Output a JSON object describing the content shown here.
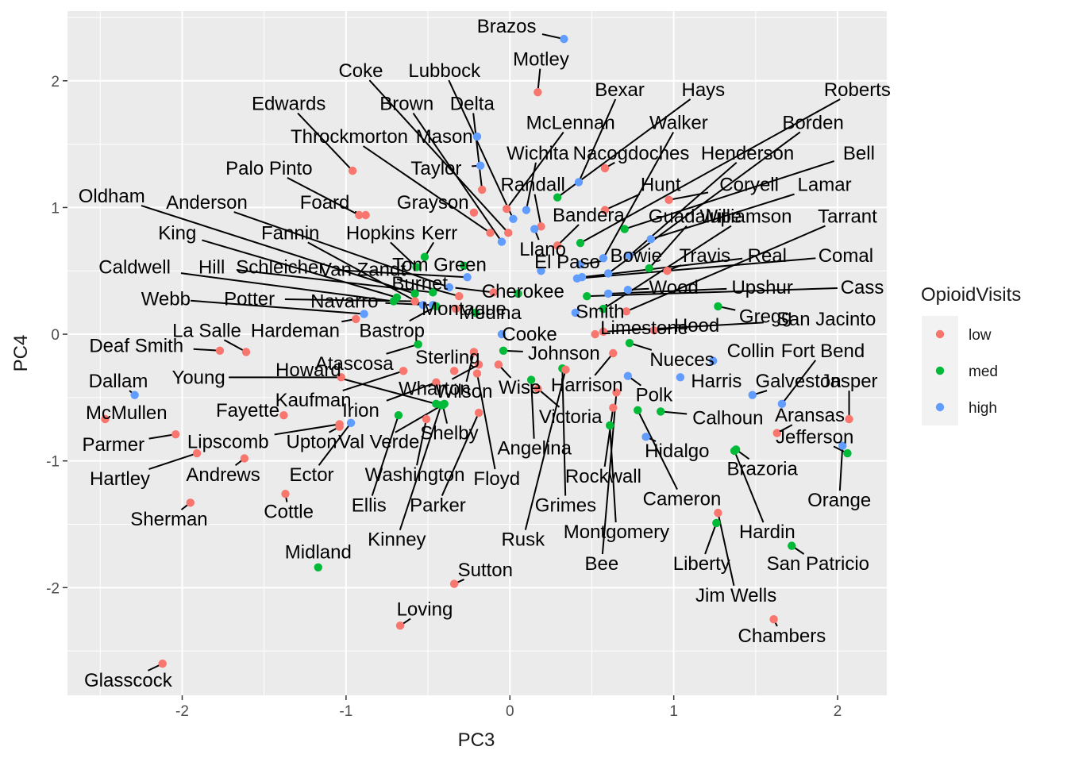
{
  "chart_data": {
    "type": "scatter",
    "title": "",
    "xlabel": "PC3",
    "ylabel": "PC4",
    "xlim": [
      -2.7,
      2.3
    ],
    "ylim": [
      -2.85,
      2.55
    ],
    "x_ticks": [
      -2,
      -1,
      0,
      1,
      2
    ],
    "y_ticks": [
      -2,
      -1,
      0,
      1,
      2
    ],
    "grid": true,
    "legend": {
      "title": "OpioidVisits",
      "position": "right",
      "entries": [
        {
          "name": "low",
          "color": "#F8766D"
        },
        {
          "name": "med",
          "color": "#00BA38"
        },
        {
          "name": "high",
          "color": "#619CFF"
        }
      ]
    },
    "points": [
      {
        "name": "Brazos",
        "x": 0.33,
        "y": 2.33,
        "group": "high",
        "lx": -0.02,
        "ly": 2.43
      },
      {
        "name": "Motley",
        "x": 0.17,
        "y": 1.91,
        "group": "low",
        "lx": 0.19,
        "ly": 2.17
      },
      {
        "name": "Bexar",
        "x": 0.42,
        "y": 1.2,
        "group": "high",
        "lx": 0.67,
        "ly": 1.93
      },
      {
        "name": "Hays",
        "x": 0.29,
        "y": 1.08,
        "group": "med",
        "lx": 1.18,
        "ly": 1.93
      },
      {
        "name": "Roberts",
        "x": 0.43,
        "y": 0.72,
        "group": "med",
        "lx": 2.12,
        "ly": 1.93
      },
      {
        "name": "Coke",
        "x": -0.01,
        "y": 0.8,
        "group": "low",
        "lx": -0.91,
        "ly": 2.08
      },
      {
        "name": "Lubbock",
        "x": 0.02,
        "y": 0.91,
        "group": "high",
        "lx": -0.4,
        "ly": 2.08
      },
      {
        "name": "Edwards",
        "x": -0.96,
        "y": 1.29,
        "group": "low",
        "lx": -1.35,
        "ly": 1.82
      },
      {
        "name": "Brown",
        "x": -0.05,
        "y": 0.73,
        "group": "high",
        "lx": -0.63,
        "ly": 1.82
      },
      {
        "name": "Delta",
        "x": -0.17,
        "y": 1.14,
        "group": "low",
        "lx": -0.23,
        "ly": 1.82
      },
      {
        "name": "McLennan",
        "x": -0.02,
        "y": 0.99,
        "group": "low",
        "lx": 0.37,
        "ly": 1.67
      },
      {
        "name": "Walker",
        "x": 0.57,
        "y": 0.6,
        "group": "high",
        "lx": 1.03,
        "ly": 1.67
      },
      {
        "name": "Borden",
        "x": 0.6,
        "y": 0.48,
        "group": "high",
        "lx": 1.85,
        "ly": 1.67
      },
      {
        "name": "Throckmorton",
        "x": -0.12,
        "y": 0.8,
        "group": "low",
        "lx": -0.98,
        "ly": 1.56
      },
      {
        "name": "Mason",
        "x": -0.2,
        "y": 1.56,
        "group": "high",
        "lx": -0.4,
        "ly": 1.56
      },
      {
        "name": "Wichita",
        "x": 0.1,
        "y": 0.98,
        "group": "high",
        "lx": 0.17,
        "ly": 1.43
      },
      {
        "name": "Nacogdoches",
        "x": 0.58,
        "y": 1.31,
        "group": "low",
        "lx": 0.74,
        "ly": 1.43
      },
      {
        "name": "Henderson",
        "x": 0.73,
        "y": 0.62,
        "group": "high",
        "lx": 1.45,
        "ly": 1.43
      },
      {
        "name": "Bell",
        "x": 0.7,
        "y": 0.83,
        "group": "med",
        "lx": 2.13,
        "ly": 1.43
      },
      {
        "name": "Palo Pinto",
        "x": -0.92,
        "y": 0.94,
        "group": "low",
        "lx": -1.47,
        "ly": 1.31
      },
      {
        "name": "Taylor",
        "x": -0.18,
        "y": 1.33,
        "group": "high",
        "lx": -0.45,
        "ly": 1.31
      },
      {
        "name": "Randall",
        "x": 0.19,
        "y": 0.85,
        "group": "low",
        "lx": 0.14,
        "ly": 1.18
      },
      {
        "name": "Hunt",
        "x": 0.58,
        "y": 0.98,
        "group": "low",
        "lx": 0.92,
        "ly": 1.18
      },
      {
        "name": "Coryell",
        "x": 0.97,
        "y": 1.06,
        "group": "low",
        "lx": 1.46,
        "ly": 1.18
      },
      {
        "name": "Lamar",
        "x": 0.86,
        "y": 0.75,
        "group": "high",
        "lx": 1.92,
        "ly": 1.18
      },
      {
        "name": "Oldham",
        "x": -0.58,
        "y": 0.32,
        "group": "med",
        "lx": -2.43,
        "ly": 1.09
      },
      {
        "name": "Anderson",
        "x": -0.37,
        "y": 0.37,
        "group": "high",
        "lx": -1.85,
        "ly": 1.04
      },
      {
        "name": "Foard",
        "x": -0.88,
        "y": 0.94,
        "group": "low",
        "lx": -1.13,
        "ly": 1.04
      },
      {
        "name": "Grayson",
        "x": -0.22,
        "y": 0.96,
        "group": "low",
        "lx": -0.47,
        "ly": 1.04
      },
      {
        "name": "Bandera",
        "x": 0.29,
        "y": 0.7,
        "group": "low",
        "lx": 0.48,
        "ly": 0.94
      },
      {
        "name": "Guadalupe",
        "x": 0.85,
        "y": 0.52,
        "group": "med",
        "lx": 1.13,
        "ly": 0.93
      },
      {
        "name": "Williamson",
        "x": 0.57,
        "y": 0.2,
        "group": "med",
        "lx": 1.44,
        "ly": 0.93
      },
      {
        "name": "Tarrant",
        "x": 0.71,
        "y": 0.18,
        "group": "low",
        "lx": 2.06,
        "ly": 0.93
      },
      {
        "name": "King",
        "x": -0.69,
        "y": 0.29,
        "group": "med",
        "lx": -2.03,
        "ly": 0.8
      },
      {
        "name": "Fannin",
        "x": -0.53,
        "y": 0.23,
        "group": "high",
        "lx": -1.34,
        "ly": 0.8
      },
      {
        "name": "Hopkins",
        "x": -0.57,
        "y": 0.53,
        "group": "med",
        "lx": -0.79,
        "ly": 0.8
      },
      {
        "name": "Kerr",
        "x": -0.52,
        "y": 0.61,
        "group": "med",
        "lx": -0.43,
        "ly": 0.8
      },
      {
        "name": "Llano",
        "x": 0.15,
        "y": 0.83,
        "group": "high",
        "lx": 0.2,
        "ly": 0.67
      },
      {
        "name": "Bowie",
        "x": 0.43,
        "y": 0.55,
        "group": "high",
        "lx": 0.77,
        "ly": 0.62
      },
      {
        "name": "Travis",
        "x": 0.96,
        "y": 0.5,
        "group": "low",
        "lx": 1.19,
        "ly": 0.62
      },
      {
        "name": "Real",
        "x": 0.44,
        "y": 0.45,
        "group": "high",
        "lx": 1.57,
        "ly": 0.62
      },
      {
        "name": "Comal",
        "x": 0.41,
        "y": 0.44,
        "group": "high",
        "lx": 2.05,
        "ly": 0.62
      },
      {
        "name": "Caldwell",
        "x": -0.71,
        "y": 0.26,
        "group": "med",
        "lx": -2.29,
        "ly": 0.53
      },
      {
        "name": "Hill",
        "x": -0.47,
        "y": 0.33,
        "group": "med",
        "lx": -1.82,
        "ly": 0.53
      },
      {
        "name": "Schleicher",
        "x": -0.26,
        "y": 0.45,
        "group": "high",
        "lx": -1.4,
        "ly": 0.53
      },
      {
        "name": "Van Zandt",
        "x": -0.31,
        "y": 0.3,
        "group": "low",
        "lx": -0.9,
        "ly": 0.51
      },
      {
        "name": "Tom Green",
        "x": -0.28,
        "y": 0.54,
        "group": "med",
        "lx": -0.43,
        "ly": 0.55
      },
      {
        "name": "El Paso",
        "x": 0.19,
        "y": 0.5,
        "group": "high",
        "lx": 0.35,
        "ly": 0.57
      },
      {
        "name": "Burnet",
        "x": -0.1,
        "y": 0.33,
        "group": "low",
        "lx": -0.55,
        "ly": 0.4
      },
      {
        "name": "Cherokee",
        "x": 0.05,
        "y": 0.32,
        "group": "med",
        "lx": 0.08,
        "ly": 0.34
      },
      {
        "name": "Wood",
        "x": 0.72,
        "y": 0.35,
        "group": "high",
        "lx": 1.0,
        "ly": 0.37
      },
      {
        "name": "Upshur",
        "x": 0.6,
        "y": 0.32,
        "group": "high",
        "lx": 1.54,
        "ly": 0.37
      },
      {
        "name": "Cass",
        "x": 0.47,
        "y": 0.3,
        "group": "med",
        "lx": 2.15,
        "ly": 0.37
      },
      {
        "name": "Webb",
        "x": -0.89,
        "y": 0.16,
        "group": "high",
        "lx": -2.1,
        "ly": 0.28
      },
      {
        "name": "Potter",
        "x": -0.58,
        "y": 0.26,
        "group": "low",
        "lx": -1.59,
        "ly": 0.28
      },
      {
        "name": "Navarro",
        "x": -0.47,
        "y": 0.23,
        "group": "high",
        "lx": -1.01,
        "ly": 0.26
      },
      {
        "name": "Montague",
        "x": -0.33,
        "y": 0.2,
        "group": "low",
        "lx": -0.28,
        "ly": 0.2
      },
      {
        "name": "Medina",
        "x": -0.21,
        "y": 0.17,
        "group": "med",
        "lx": -0.12,
        "ly": 0.17
      },
      {
        "name": "Smith",
        "x": 0.4,
        "y": 0.17,
        "group": "high",
        "lx": 0.55,
        "ly": 0.18
      },
      {
        "name": "Gregg",
        "x": 1.27,
        "y": 0.22,
        "group": "med",
        "lx": 1.56,
        "ly": 0.14
      },
      {
        "name": "San Jacinto",
        "x": 0.57,
        "y": 0.02,
        "group": "low",
        "lx": 1.93,
        "ly": 0.12
      },
      {
        "name": "Hardeman",
        "x": -0.94,
        "y": 0.12,
        "group": "low",
        "lx": -1.31,
        "ly": 0.03
      },
      {
        "name": "Bastrop",
        "x": -0.45,
        "y": 0.22,
        "group": "med",
        "lx": -0.72,
        "ly": 0.03
      },
      {
        "name": "Limestone",
        "x": 0.52,
        "y": 0.0,
        "group": "low",
        "lx": 0.82,
        "ly": 0.05
      },
      {
        "name": "Hood",
        "x": 0.88,
        "y": 0.03,
        "group": "low",
        "lx": 1.14,
        "ly": 0.07
      },
      {
        "name": "La Salle",
        "x": -1.61,
        "y": -0.14,
        "group": "low",
        "lx": -1.85,
        "ly": 0.03
      },
      {
        "name": "Cooke",
        "x": -0.05,
        "y": 0.0,
        "group": "high",
        "lx": 0.12,
        "ly": 0.0
      },
      {
        "name": "Deaf Smith",
        "x": -1.77,
        "y": -0.13,
        "group": "low",
        "lx": -2.28,
        "ly": -0.09
      },
      {
        "name": "Johnson",
        "x": -0.04,
        "y": -0.13,
        "group": "med",
        "lx": 0.33,
        "ly": -0.15
      },
      {
        "name": "Collin",
        "x": 1.24,
        "y": -0.21,
        "group": "high",
        "lx": 1.47,
        "ly": -0.13
      },
      {
        "name": "Fort Bend",
        "x": 1.66,
        "y": -0.55,
        "group": "high",
        "lx": 1.91,
        "ly": -0.13
      },
      {
        "name": "Atascosa",
        "x": -0.56,
        "y": -0.08,
        "group": "med",
        "lx": -0.95,
        "ly": -0.23
      },
      {
        "name": "Sterling",
        "x": -0.34,
        "y": -0.29,
        "group": "low",
        "lx": -0.38,
        "ly": -0.18
      },
      {
        "name": "Nueces",
        "x": 0.73,
        "y": -0.07,
        "group": "med",
        "lx": 1.05,
        "ly": -0.2
      },
      {
        "name": "Howard",
        "x": -0.45,
        "y": -0.55,
        "group": "med",
        "lx": -1.23,
        "ly": -0.28
      },
      {
        "name": "Dallam",
        "x": -2.29,
        "y": -0.48,
        "group": "high",
        "lx": -2.39,
        "ly": -0.37
      },
      {
        "name": "Young",
        "x": -1.03,
        "y": -0.34,
        "group": "low",
        "lx": -1.9,
        "ly": -0.34
      },
      {
        "name": "Harrison",
        "x": 0.63,
        "y": -0.15,
        "group": "low",
        "lx": 0.47,
        "ly": -0.4
      },
      {
        "name": "Harris",
        "x": 1.04,
        "y": -0.34,
        "group": "high",
        "lx": 1.26,
        "ly": -0.37
      },
      {
        "name": "Galveston",
        "x": 1.48,
        "y": -0.48,
        "group": "high",
        "lx": 1.76,
        "ly": -0.37
      },
      {
        "name": "Jasper",
        "x": 2.07,
        "y": -0.67,
        "group": "low",
        "lx": 2.07,
        "ly": -0.37
      },
      {
        "name": "Wharton",
        "x": -0.19,
        "y": -0.24,
        "group": "low",
        "lx": -0.46,
        "ly": -0.43
      },
      {
        "name": "Wilson",
        "x": -0.22,
        "y": -0.14,
        "group": "low",
        "lx": -0.28,
        "ly": -0.45
      },
      {
        "name": "Wise",
        "x": -0.07,
        "y": -0.24,
        "group": "low",
        "lx": 0.06,
        "ly": -0.42
      },
      {
        "name": "Polk",
        "x": 0.72,
        "y": -0.33,
        "group": "high",
        "lx": 0.88,
        "ly": -0.48
      },
      {
        "name": "Kaufman",
        "x": -0.65,
        "y": -0.29,
        "group": "low",
        "lx": -1.2,
        "ly": -0.52
      },
      {
        "name": "Fayette",
        "x": -1.38,
        "y": -0.64,
        "group": "low",
        "lx": -1.6,
        "ly": -0.6
      },
      {
        "name": "Irion",
        "x": -0.45,
        "y": -0.38,
        "group": "low",
        "lx": -0.91,
        "ly": -0.6
      },
      {
        "name": "McMullen",
        "x": -2.47,
        "y": -0.67,
        "group": "low",
        "lx": -2.34,
        "ly": -0.62
      },
      {
        "name": "Calhoun",
        "x": 0.92,
        "y": -0.61,
        "group": "med",
        "lx": 1.33,
        "ly": -0.66
      },
      {
        "name": "Aransas",
        "x": 1.63,
        "y": -0.78,
        "group": "low",
        "lx": 1.83,
        "ly": -0.64
      },
      {
        "name": "Victoria",
        "x": 0.17,
        "y": -0.43,
        "group": "low",
        "lx": 0.37,
        "ly": -0.65
      },
      {
        "name": "Shelby",
        "x": -0.41,
        "y": -0.56,
        "group": "med",
        "lx": -0.37,
        "ly": -0.78
      },
      {
        "name": "Lipscomb",
        "x": -1.04,
        "y": -0.71,
        "group": "low",
        "lx": -1.72,
        "ly": -0.85
      },
      {
        "name": "Upton",
        "x": -1.04,
        "y": -0.73,
        "group": "low",
        "lx": -1.21,
        "ly": -0.85
      },
      {
        "name": "Val Verde",
        "x": -0.4,
        "y": -0.55,
        "group": "med",
        "lx": -0.8,
        "ly": -0.85
      },
      {
        "name": "Jefferson",
        "x": 2.06,
        "y": -0.94,
        "group": "med",
        "lx": 1.86,
        "ly": -0.81
      },
      {
        "name": "Parmer",
        "x": -2.04,
        "y": -0.79,
        "group": "low",
        "lx": -2.42,
        "ly": -0.87
      },
      {
        "name": "Angelina",
        "x": 0.13,
        "y": -0.36,
        "group": "med",
        "lx": 0.15,
        "ly": -0.9
      },
      {
        "name": "Hidalgo",
        "x": 0.83,
        "y": -0.81,
        "group": "high",
        "lx": 1.02,
        "ly": -0.92
      },
      {
        "name": "Brazoria",
        "x": 1.38,
        "y": -0.91,
        "group": "med",
        "lx": 1.54,
        "ly": -1.06
      },
      {
        "name": "Andrews",
        "x": -1.62,
        "y": -0.98,
        "group": "low",
        "lx": -1.75,
        "ly": -1.11
      },
      {
        "name": "Ector",
        "x": -0.97,
        "y": -0.7,
        "group": "high",
        "lx": -1.21,
        "ly": -1.11
      },
      {
        "name": "Washington",
        "x": -0.51,
        "y": -0.67,
        "group": "low",
        "lx": -0.58,
        "ly": -1.11
      },
      {
        "name": "Floyd",
        "x": -0.2,
        "y": -0.31,
        "group": "low",
        "lx": -0.08,
        "ly": -1.14
      },
      {
        "name": "Rockwall",
        "x": 0.63,
        "y": -0.58,
        "group": "low",
        "lx": 0.57,
        "ly": -1.12
      },
      {
        "name": "Hartley",
        "x": -1.91,
        "y": -0.94,
        "group": "low",
        "lx": -2.38,
        "ly": -1.14
      },
      {
        "name": "Orange",
        "x": 2.03,
        "y": -0.88,
        "group": "high",
        "lx": 2.01,
        "ly": -1.31
      },
      {
        "name": "Cameron",
        "x": 0.78,
        "y": -0.6,
        "group": "med",
        "lx": 1.05,
        "ly": -1.3
      },
      {
        "name": "Grimes",
        "x": 0.32,
        "y": -0.27,
        "group": "med",
        "lx": 0.34,
        "ly": -1.35
      },
      {
        "name": "Ellis",
        "x": -0.68,
        "y": -0.64,
        "group": "med",
        "lx": -0.86,
        "ly": -1.35
      },
      {
        "name": "Parker",
        "x": -0.19,
        "y": -0.62,
        "group": "low",
        "lx": -0.44,
        "ly": -1.35
      },
      {
        "name": "Sherman",
        "x": -1.95,
        "y": -1.33,
        "group": "low",
        "lx": -2.08,
        "ly": -1.46
      },
      {
        "name": "Cottle",
        "x": -1.37,
        "y": -1.26,
        "group": "low",
        "lx": -1.35,
        "ly": -1.4
      },
      {
        "name": "Hardin",
        "x": 1.37,
        "y": -0.92,
        "group": "med",
        "lx": 1.57,
        "ly": -1.56
      },
      {
        "name": "Montgomery",
        "x": 0.61,
        "y": -0.72,
        "group": "med",
        "lx": 0.65,
        "ly": -1.56
      },
      {
        "name": "Rusk",
        "x": 0.34,
        "y": -0.28,
        "group": "low",
        "lx": 0.08,
        "ly": -1.62
      },
      {
        "name": "Kinney",
        "x": -0.42,
        "y": -0.56,
        "group": "med",
        "lx": -0.69,
        "ly": -1.62
      },
      {
        "name": "Midland",
        "x": -1.17,
        "y": -1.84,
        "group": "med",
        "lx": -1.17,
        "ly": -1.72
      },
      {
        "name": "Liberty",
        "x": 1.26,
        "y": -1.49,
        "group": "med",
        "lx": 1.17,
        "ly": -1.81
      },
      {
        "name": "San Patricio",
        "x": 1.72,
        "y": -1.67,
        "group": "med",
        "lx": 1.88,
        "ly": -1.81
      },
      {
        "name": "Bee",
        "x": 0.65,
        "y": -0.46,
        "group": "low",
        "lx": 0.56,
        "ly": -1.81
      },
      {
        "name": "Sutton",
        "x": -0.34,
        "y": -1.97,
        "group": "low",
        "lx": -0.15,
        "ly": -1.86
      },
      {
        "name": "Jim Wells",
        "x": 1.27,
        "y": -1.41,
        "group": "low",
        "lx": 1.38,
        "ly": -2.06
      },
      {
        "name": "Loving",
        "x": -0.67,
        "y": -2.3,
        "group": "low",
        "lx": -0.52,
        "ly": -2.17
      },
      {
        "name": "Chambers",
        "x": 1.61,
        "y": -2.25,
        "group": "low",
        "lx": 1.66,
        "ly": -2.38
      },
      {
        "name": "Glasscock",
        "x": -2.12,
        "y": -2.6,
        "group": "low",
        "lx": -2.33,
        "ly": -2.73
      }
    ]
  }
}
